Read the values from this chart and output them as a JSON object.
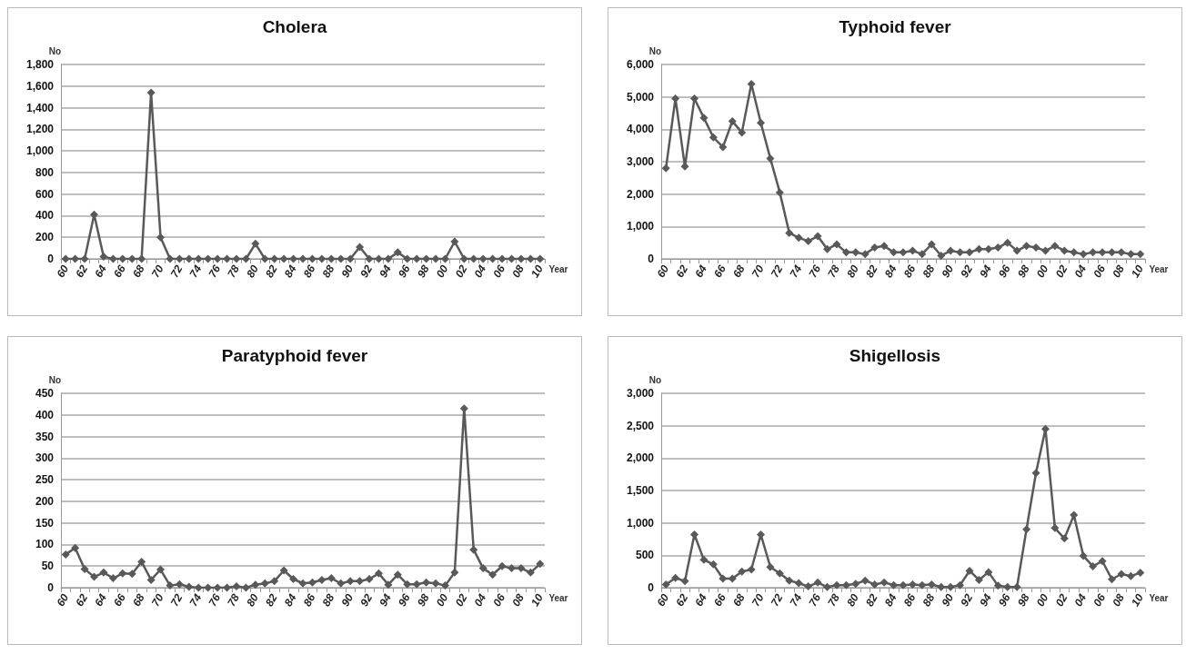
{
  "chart_data": [
    {
      "type": "line",
      "title": "Cholera",
      "xlabel": "Year",
      "ylabel": "No",
      "categories": [
        "60",
        null,
        "62",
        null,
        "64",
        null,
        "66",
        null,
        "68",
        null,
        "70",
        null,
        "72",
        null,
        "74",
        null,
        "76",
        null,
        "78",
        null,
        "80",
        null,
        "82",
        null,
        "84",
        null,
        "86",
        null,
        "88",
        null,
        "90",
        null,
        "92",
        null,
        "94",
        null,
        "96",
        null,
        "98",
        null,
        "00",
        null,
        "02",
        null,
        "04",
        null,
        "06",
        null,
        "08",
        null,
        "10"
      ],
      "series": [
        {
          "color": "#595959",
          "values": [
            0,
            0,
            0,
            410,
            20,
            0,
            0,
            0,
            0,
            1540,
            200,
            0,
            0,
            0,
            0,
            0,
            0,
            0,
            0,
            0,
            140,
            0,
            0,
            0,
            0,
            0,
            0,
            0,
            0,
            0,
            0,
            110,
            0,
            0,
            0,
            60,
            0,
            0,
            0,
            0,
            0,
            160,
            0,
            0,
            0,
            0,
            0,
            0,
            0,
            0,
            0
          ]
        }
      ],
      "ylim": [
        0,
        1800
      ],
      "yticks": [
        0,
        200,
        400,
        600,
        800,
        {
          "value": 1000,
          "label": "1,000"
        },
        {
          "value": 1200,
          "label": "1,200"
        },
        {
          "value": 1400,
          "label": "1,400"
        },
        {
          "value": 1600,
          "label": "1,600"
        },
        {
          "value": 1800,
          "label": "1,800"
        }
      ],
      "grid": "y",
      "marker": "diamond",
      "line_style": "solid"
    },
    {
      "type": "line",
      "title": "Typhoid fever",
      "xlabel": "Year",
      "ylabel": "No",
      "categories": [
        "60",
        null,
        "62",
        null,
        "64",
        null,
        "66",
        null,
        "68",
        null,
        "70",
        null,
        "72",
        null,
        "74",
        null,
        "76",
        null,
        "78",
        null,
        "80",
        null,
        "82",
        null,
        "84",
        null,
        "86",
        null,
        "88",
        null,
        "90",
        null,
        "92",
        null,
        "94",
        null,
        "96",
        null,
        "98",
        null,
        "00",
        null,
        "02",
        null,
        "04",
        null,
        "06",
        null,
        "08",
        null,
        "10"
      ],
      "series": [
        {
          "color": "#595959",
          "values": [
            2800,
            4950,
            2850,
            4950,
            4350,
            3750,
            3450,
            4250,
            3900,
            5400,
            4200,
            3100,
            2050,
            800,
            650,
            550,
            700,
            300,
            450,
            200,
            200,
            150,
            350,
            400,
            200,
            200,
            250,
            150,
            450,
            100,
            250,
            200,
            200,
            300,
            300,
            350,
            500,
            250,
            400,
            350,
            250,
            400,
            250,
            200,
            150,
            200,
            200,
            200,
            200,
            150,
            150
          ]
        }
      ],
      "ylim": [
        0,
        6000
      ],
      "yticks": [
        0,
        {
          "value": 1000,
          "label": "1,000"
        },
        {
          "value": 2000,
          "label": "2,000"
        },
        {
          "value": 3000,
          "label": "3,000"
        },
        {
          "value": 4000,
          "label": "4,000"
        },
        {
          "value": 5000,
          "label": "5,000"
        },
        {
          "value": 6000,
          "label": "6,000"
        }
      ],
      "grid": "y",
      "marker": "diamond",
      "line_style": "solid"
    },
    {
      "type": "line",
      "title": "Paratyphoid fever",
      "xlabel": "Year",
      "ylabel": "No",
      "categories": [
        "60",
        null,
        "62",
        null,
        "64",
        null,
        "66",
        null,
        "68",
        null,
        "70",
        null,
        "72",
        null,
        "74",
        null,
        "76",
        null,
        "78",
        null,
        "80",
        null,
        "82",
        null,
        "84",
        null,
        "86",
        null,
        "88",
        null,
        "90",
        null,
        "92",
        null,
        "94",
        null,
        "96",
        null,
        "98",
        null,
        "00",
        null,
        "02",
        null,
        "04",
        null,
        "06",
        null,
        "08",
        null,
        "10"
      ],
      "series": [
        {
          "color": "#595959",
          "values": [
            77,
            92,
            43,
            25,
            35,
            22,
            33,
            32,
            60,
            18,
            42,
            5,
            8,
            2,
            0,
            0,
            0,
            0,
            3,
            0,
            7,
            10,
            15,
            40,
            20,
            10,
            12,
            18,
            22,
            10,
            15,
            15,
            20,
            33,
            7,
            30,
            8,
            8,
            12,
            10,
            5,
            35,
            415,
            88,
            45,
            30,
            50,
            45,
            45,
            35,
            55
          ]
        }
      ],
      "ylim": [
        0,
        450
      ],
      "yticks": [
        0,
        50,
        100,
        150,
        200,
        250,
        300,
        350,
        400,
        450
      ],
      "grid": "y",
      "marker": "diamond",
      "line_style": "solid"
    },
    {
      "type": "line",
      "title": "Shigellosis",
      "xlabel": "Year",
      "ylabel": "No",
      "categories": [
        "60",
        null,
        "62",
        null,
        "64",
        null,
        "66",
        null,
        "68",
        null,
        "70",
        null,
        "72",
        null,
        "74",
        null,
        "76",
        null,
        "78",
        null,
        "80",
        null,
        "82",
        null,
        "84",
        null,
        "86",
        null,
        "88",
        null,
        "90",
        null,
        "92",
        null,
        "94",
        null,
        "96",
        null,
        "98",
        null,
        "00",
        null,
        "02",
        null,
        "04",
        null,
        "06",
        null,
        "08",
        null,
        "10"
      ],
      "series": [
        {
          "color": "#595959",
          "values": [
            50,
            150,
            100,
            820,
            430,
            360,
            140,
            140,
            250,
            280,
            820,
            320,
            220,
            110,
            70,
            20,
            80,
            10,
            40,
            40,
            60,
            110,
            50,
            80,
            40,
            40,
            50,
            40,
            50,
            10,
            10,
            40,
            260,
            120,
            240,
            30,
            10,
            10,
            900,
            1770,
            2450,
            920,
            760,
            1120,
            490,
            330,
            410,
            130,
            210,
            180,
            230
          ]
        }
      ],
      "ylim": [
        0,
        3000
      ],
      "yticks": [
        0,
        500,
        {
          "value": 1000,
          "label": "1,000"
        },
        {
          "value": 1500,
          "label": "1,500"
        },
        {
          "value": 2000,
          "label": "2,000"
        },
        {
          "value": 2500,
          "label": "2,500"
        },
        {
          "value": 3000,
          "label": "3,000"
        }
      ],
      "grid": "y",
      "marker": "diamond",
      "line_style": "solid"
    }
  ]
}
